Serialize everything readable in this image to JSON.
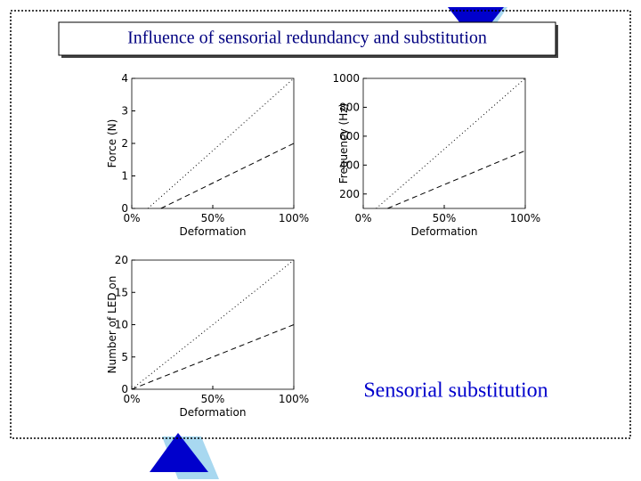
{
  "title": "Influence of sensorial redundancy and substitution",
  "caption": "Sensorial substitution",
  "chart_data": [
    {
      "type": "line",
      "xlabel": "Deformation",
      "ylabel": "Force (N)",
      "xlim": [
        0,
        100
      ],
      "xticks": [
        {
          "value": 0,
          "label": "0%"
        },
        {
          "value": 50,
          "label": "50%"
        },
        {
          "value": 100,
          "label": "100%"
        }
      ],
      "ylim": [
        0,
        4
      ],
      "yticks": [
        0,
        1,
        2,
        3,
        4
      ],
      "series": [
        {
          "x": [
            10,
            100
          ],
          "values": [
            0,
            4
          ],
          "color": "#000000",
          "line_style": "dotted"
        },
        {
          "x": [
            18,
            100
          ],
          "values": [
            0,
            2
          ],
          "color": "#000000",
          "line_style": "dashed"
        }
      ]
    },
    {
      "type": "line",
      "xlabel": "Deformation",
      "ylabel": "Frequency (Hz)",
      "xlim": [
        0,
        100
      ],
      "xticks": [
        {
          "value": 0,
          "label": "0%"
        },
        {
          "value": 50,
          "label": "50%"
        },
        {
          "value": 100,
          "label": "100%"
        }
      ],
      "ylim": [
        100,
        1000
      ],
      "yticks": [
        200,
        400,
        600,
        800,
        1000
      ],
      "series": [
        {
          "x": [
            8,
            100
          ],
          "values": [
            100,
            1000
          ],
          "color": "#000000",
          "line_style": "dotted"
        },
        {
          "x": [
            15,
            100
          ],
          "values": [
            100,
            500
          ],
          "color": "#000000",
          "line_style": "dashed"
        }
      ]
    },
    {
      "type": "line",
      "xlabel": "Deformation",
      "ylabel": "Number of LED on",
      "xlim": [
        0,
        100
      ],
      "xticks": [
        {
          "value": 0,
          "label": "0%"
        },
        {
          "value": 50,
          "label": "50%"
        },
        {
          "value": 100,
          "label": "100%"
        }
      ],
      "ylim": [
        0,
        20
      ],
      "yticks": [
        0,
        5,
        10,
        15,
        20
      ],
      "series": [
        {
          "x": [
            0,
            100
          ],
          "values": [
            0,
            20
          ],
          "color": "#000000",
          "line_style": "dotted"
        },
        {
          "x": [
            0,
            100
          ],
          "values": [
            0,
            10
          ],
          "color": "#000000",
          "line_style": "dashed"
        }
      ]
    }
  ]
}
